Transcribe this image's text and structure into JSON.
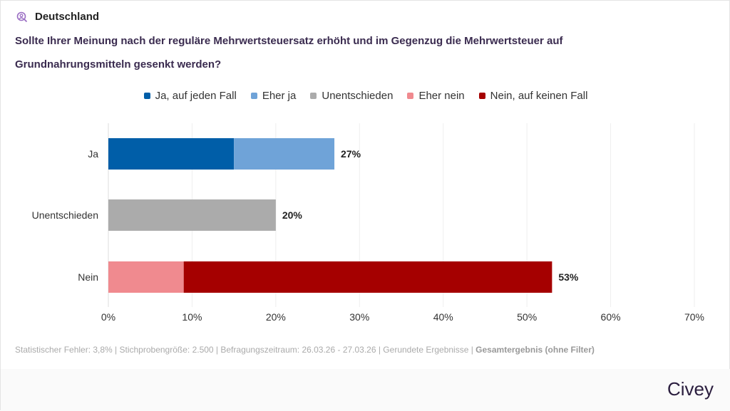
{
  "header": {
    "region": "Deutschland",
    "icon": "user-search-icon"
  },
  "question": "Sollte Ihrer Meinung nach der reguläre Mehrwertsteuersatz erhöht und im Gegenzug die Mehrwertsteuer auf Grundnahrungsmitteln gesenkt werden?",
  "chart_data": {
    "type": "bar",
    "orientation": "horizontal",
    "stacked": true,
    "categories": [
      "Ja",
      "Unentschieden",
      "Nein"
    ],
    "series": [
      {
        "name": "Ja, auf jeden Fall",
        "color": "#005ea8",
        "values": [
          15,
          0,
          0
        ]
      },
      {
        "name": "Eher ja",
        "color": "#6fa3d8",
        "values": [
          12,
          0,
          0
        ]
      },
      {
        "name": "Unentschieden",
        "color": "#ababab",
        "values": [
          0,
          20,
          0
        ]
      },
      {
        "name": "Eher nein",
        "color": "#f08a8f",
        "values": [
          0,
          0,
          9
        ]
      },
      {
        "name": "Nein, auf keinen Fall",
        "color": "#a50000",
        "values": [
          0,
          0,
          44
        ]
      }
    ],
    "totals": [
      "27%",
      "20%",
      "53%"
    ],
    "xlim": [
      0,
      70
    ],
    "xticks": [
      "0%",
      "10%",
      "20%",
      "30%",
      "40%",
      "50%",
      "60%",
      "70%"
    ],
    "grid": true,
    "legend": "top"
  },
  "footer": {
    "text": "Statistischer Fehler: 3,8% | Stichprobengröße: 2.500 | Befragungszeitraum: 26.03.26 - 27.03.26 | Gerundete Ergebnisse | ",
    "bold": "Gesamtergebnis (ohne Filter)"
  },
  "brand": "Civey"
}
